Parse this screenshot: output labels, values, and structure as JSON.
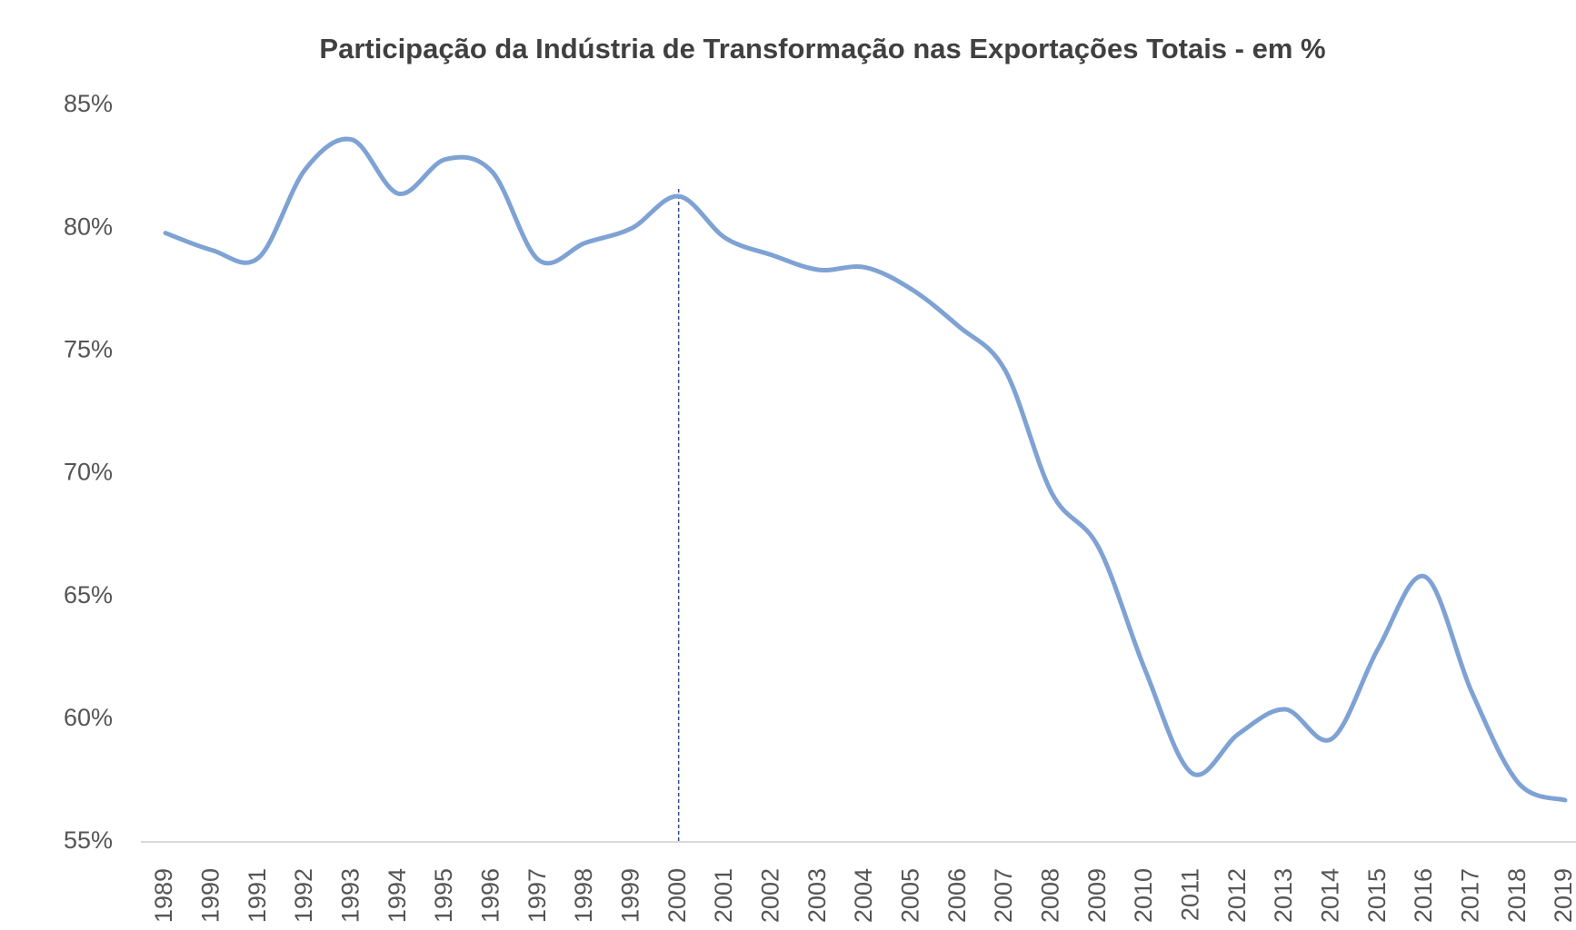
{
  "chart_data": {
    "type": "line",
    "title": "Participação da Indústria de Transformação nas Exportações Totais - em %",
    "categories": [
      "1989",
      "1990",
      "1991",
      "1992",
      "1993",
      "1994",
      "1995",
      "1996",
      "1997",
      "1998",
      "1999",
      "2000",
      "2001",
      "2002",
      "2003",
      "2004",
      "2005",
      "2006",
      "2007",
      "2008",
      "2009",
      "2010",
      "2011",
      "2012",
      "2013",
      "2014",
      "2015",
      "2016",
      "2017",
      "2018",
      "2019"
    ],
    "series": [
      {
        "name": "Participação",
        "color": "#7fa2d4",
        "values": [
          79.8,
          79.1,
          78.8,
          82.4,
          83.6,
          81.4,
          82.8,
          82.3,
          78.7,
          79.4,
          80.0,
          81.3,
          79.6,
          78.9,
          78.3,
          78.4,
          77.5,
          76.0,
          74.2,
          69.2,
          67.0,
          62.0,
          57.8,
          59.4,
          60.4,
          59.2,
          62.9,
          65.8,
          61.1,
          57.4,
          56.7
        ]
      }
    ],
    "ylim": [
      55,
      85
    ],
    "yticks": [
      {
        "value": 55,
        "label": "55%"
      },
      {
        "value": 60,
        "label": "60%"
      },
      {
        "value": 65,
        "label": "65%"
      },
      {
        "value": 70,
        "label": "70%"
      },
      {
        "value": 75,
        "label": "75%"
      },
      {
        "value": 80,
        "label": "80%"
      },
      {
        "value": 85,
        "label": "85%"
      }
    ]
  }
}
